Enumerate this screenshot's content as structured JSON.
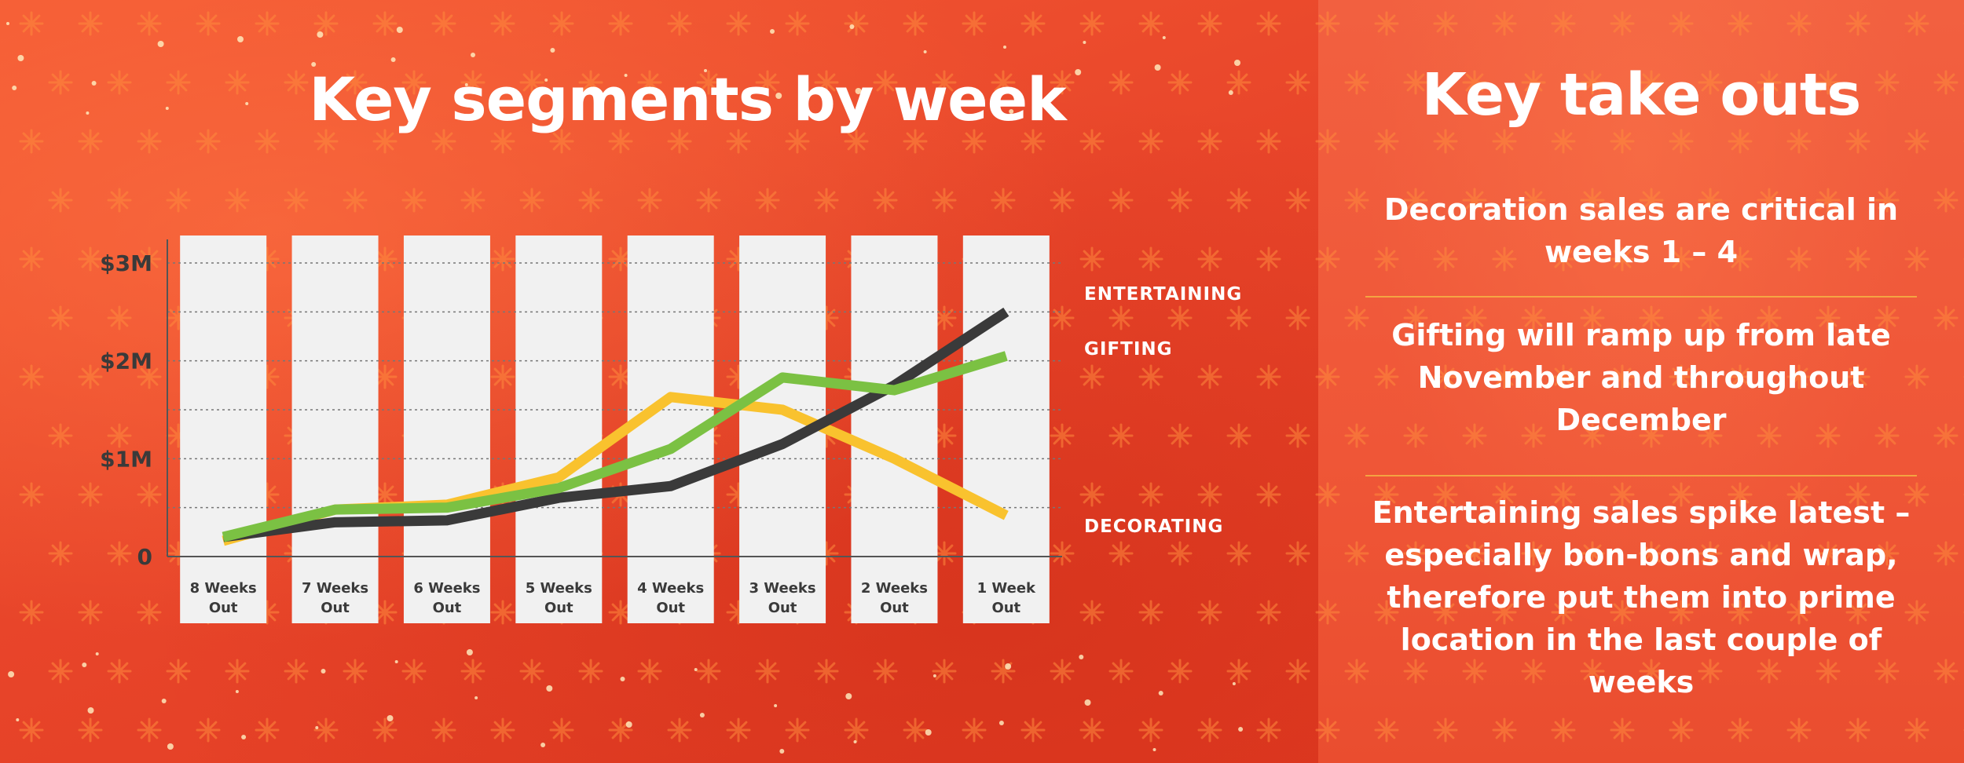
{
  "chart_title": "Key segments by week",
  "takeouts": {
    "title": "Key take outs",
    "items": [
      "Decoration sales are critical in weeks 1 – 4",
      "Gifting will ramp up from late November and throughout December",
      "Entertaining sales spike latest – especially bon-bons and wrap, therefore put them into prime location in the last couple of weeks"
    ]
  },
  "chart_data": {
    "type": "line",
    "title": "Key segments by week",
    "categories": [
      "8 Weeks Out",
      "7 Weeks Out",
      "6 Weeks Out",
      "5 Weeks Out",
      "4 Weeks Out",
      "3 Weeks Out",
      "2 Weeks Out",
      "1 Week Out"
    ],
    "y_tick_labels": [
      "0",
      "$1M",
      "$2M",
      "$3M"
    ],
    "y_ticks": [
      0,
      1000000,
      2000000,
      3000000
    ],
    "ylim": [
      0,
      3000000
    ],
    "grid": "dotted horizontal lines every $0.5M",
    "series": [
      {
        "name": "ENTERTAINING",
        "color": "#3a3a3a",
        "values": [
          200000,
          350000,
          370000,
          600000,
          720000,
          1150000,
          1750000,
          2500000
        ]
      },
      {
        "name": "GIFTING",
        "color": "#7bc143",
        "values": [
          200000,
          480000,
          500000,
          700000,
          1100000,
          1830000,
          1700000,
          2050000
        ]
      },
      {
        "name": "DECORATING",
        "color": "#f9c22e",
        "values": [
          160000,
          480000,
          530000,
          810000,
          1630000,
          1500000,
          1000000,
          420000
        ]
      }
    ]
  }
}
